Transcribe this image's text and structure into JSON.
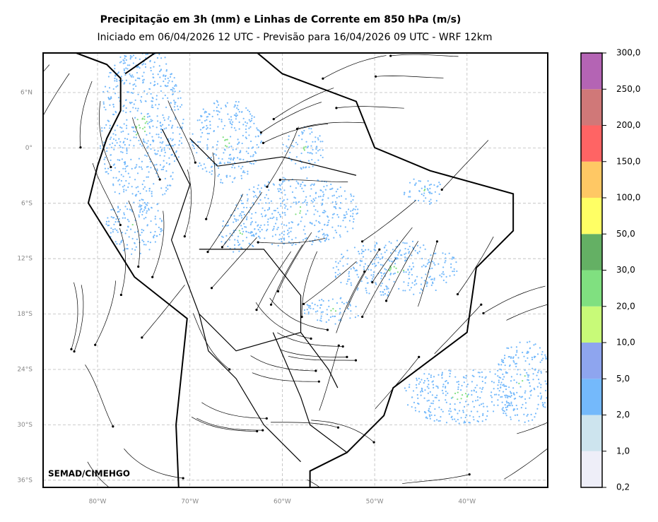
{
  "header": {
    "title": "Precipitação em 3h (mm) e Linhas de Corrente em 850 hPa (m/s)",
    "subtitle": "Iniciado em 06/04/2026 12 UTC - Previsão para 16/04/2026 09 UTC - WRF 12km"
  },
  "map": {
    "lat_labels": [
      "6°N",
      "0°",
      "6°S",
      "12°S",
      "18°S",
      "24°S",
      "30°S",
      "36°S"
    ],
    "lon_labels": [
      "80°W",
      "70°W",
      "60°W",
      "50°W",
      "40°W"
    ],
    "credit": "SEMAD/CIMEHGO"
  },
  "colorbar": {
    "labels": [
      "0,2",
      "1,0",
      "2,0",
      "5,0",
      "10,0",
      "20,0",
      "30,0",
      "50,0",
      "100,0",
      "150,0",
      "200,0",
      "250,0",
      "300,0"
    ],
    "colors": [
      "#eeeef8",
      "#cde4ee",
      "#74b9fb",
      "#8ea5ef",
      "#c8fa78",
      "#80e080",
      "#64b064",
      "#ffff64",
      "#ffc864",
      "#ff6464",
      "#d07878",
      "#b464b4"
    ]
  }
}
